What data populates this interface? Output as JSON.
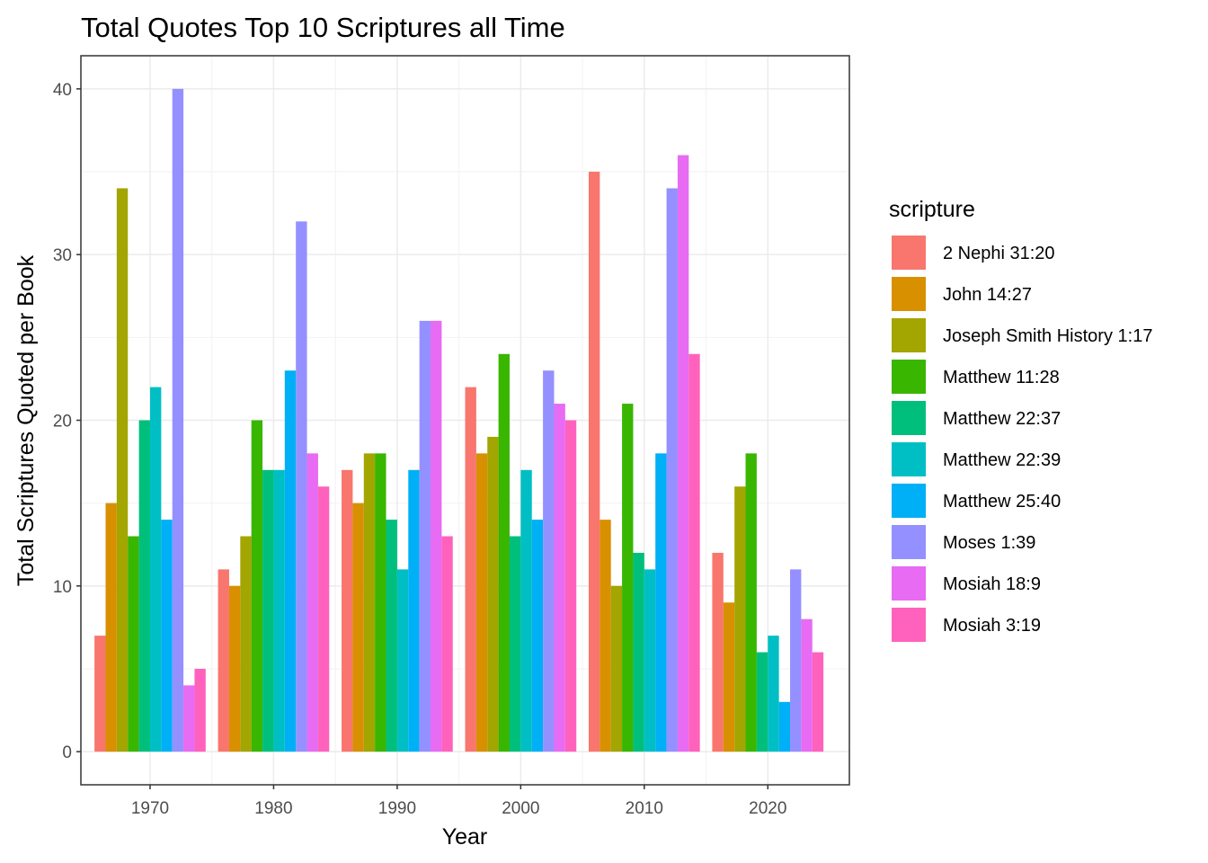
{
  "chart_data": {
    "type": "bar",
    "title": "Total Quotes Top 10 Scriptures all Time",
    "xlabel": "Year",
    "ylabel": "Total Scriptures Quoted per Book",
    "categories": [
      "1970",
      "1980",
      "1990",
      "2000",
      "2010",
      "2020"
    ],
    "x_ticks": [
      "1970",
      "1980",
      "1990",
      "2000",
      "2010",
      "2020"
    ],
    "y_ticks": [
      "0",
      "10",
      "20",
      "30",
      "40"
    ],
    "ylim": [
      -2,
      42
    ],
    "grid": true,
    "legend": {
      "title": "scripture",
      "position": "right"
    },
    "series": [
      {
        "name": "2 Nephi 31:20",
        "color": "#F8766D",
        "values": [
          7,
          11,
          17,
          22,
          35,
          12
        ]
      },
      {
        "name": "John 14:27",
        "color": "#D89000",
        "values": [
          15,
          10,
          15,
          18,
          14,
          9
        ]
      },
      {
        "name": "Joseph Smith History 1:17",
        "color": "#A3A500",
        "values": [
          34,
          13,
          18,
          19,
          10,
          16
        ]
      },
      {
        "name": "Matthew 11:28",
        "color": "#39B600",
        "values": [
          13,
          20,
          18,
          24,
          21,
          18
        ]
      },
      {
        "name": "Matthew 22:37",
        "color": "#00BF7D",
        "values": [
          20,
          17,
          14,
          13,
          12,
          6
        ]
      },
      {
        "name": "Matthew 22:39",
        "color": "#00BFC4",
        "values": [
          22,
          17,
          11,
          17,
          11,
          7
        ]
      },
      {
        "name": "Matthew 25:40",
        "color": "#00B0F6",
        "values": [
          14,
          23,
          17,
          14,
          18,
          3
        ]
      },
      {
        "name": "Moses 1:39",
        "color": "#9590FF",
        "values": [
          40,
          32,
          26,
          23,
          34,
          11
        ]
      },
      {
        "name": "Mosiah 18:9",
        "color": "#E76BF3",
        "values": [
          4,
          18,
          26,
          21,
          36,
          8
        ]
      },
      {
        "name": "Mosiah 3:19",
        "color": "#FF62BC",
        "values": [
          5,
          16,
          13,
          20,
          24,
          6
        ]
      }
    ]
  }
}
